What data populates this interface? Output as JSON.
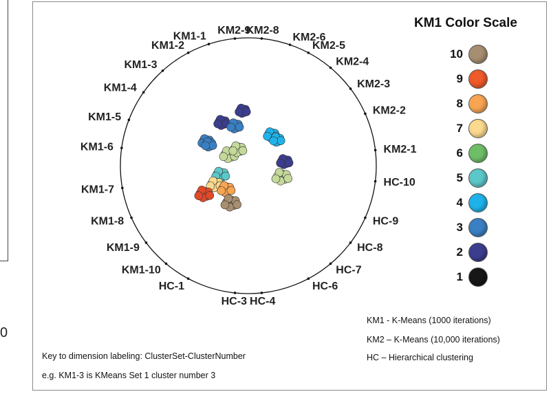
{
  "fragment_char": "0",
  "dimension_labels": [
    "KM2-9",
    "KM2-8",
    "KM2-6",
    "KM2-5",
    "KM2-4",
    "KM2-3",
    "KM2-2",
    "KM2-1",
    "HC-10",
    "HC-9",
    "HC-8",
    "HC-7",
    "HC-6",
    "HC-4",
    "HC-3",
    "HC-1",
    "KM1-10",
    "KM1-9",
    "KM1-8",
    "KM1-7",
    "KM1-6",
    "KM1-5",
    "KM1-4",
    "KM1-3",
    "KM1-2",
    "KM1-1"
  ],
  "color_scale": {
    "title": "KM1 Color Scale",
    "entries": [
      {
        "label": "10",
        "color": "#a88e70"
      },
      {
        "label": "9",
        "color": "#ee5a2a"
      },
      {
        "label": "8",
        "color": "#f7a552"
      },
      {
        "label": "7",
        "color": "#fbd98d"
      },
      {
        "label": "6",
        "color": "#6fbe67"
      },
      {
        "label": "5",
        "color": "#5cc7c9"
      },
      {
        "label": "4",
        "color": "#1fb2ea"
      },
      {
        "label": "3",
        "color": "#3a7fc3"
      },
      {
        "label": "2",
        "color": "#3b3d8f"
      },
      {
        "label": "1",
        "color": "#171717"
      }
    ]
  },
  "method_key": [
    "KM1 - K-Means (1000 iterations)",
    "KM2 – K-Means (10,000 iterations)",
    "HC – Hierarchical clustering"
  ],
  "dimension_key": [
    "Key to dimension labeling: ClusterSet-ClusterNumber",
    "e.g. KM1-3 is KMeans Set 1 cluster number 3"
  ],
  "point_groups": [
    {
      "cluster": "2",
      "color": "#3b3d8f"
    },
    {
      "cluster": "3",
      "color": "#3a7fc3"
    },
    {
      "cluster": "4",
      "color": "#1fb2ea"
    },
    {
      "cluster": "5",
      "color": "#5cc7c9"
    },
    {
      "cluster": "6",
      "color": "#c4d99a"
    },
    {
      "cluster": "7",
      "color": "#fbd98d"
    },
    {
      "cluster": "8",
      "color": "#f7a552"
    },
    {
      "cluster": "9",
      "color": "#e0492a"
    },
    {
      "cluster": "10",
      "color": "#a88e70"
    }
  ]
}
